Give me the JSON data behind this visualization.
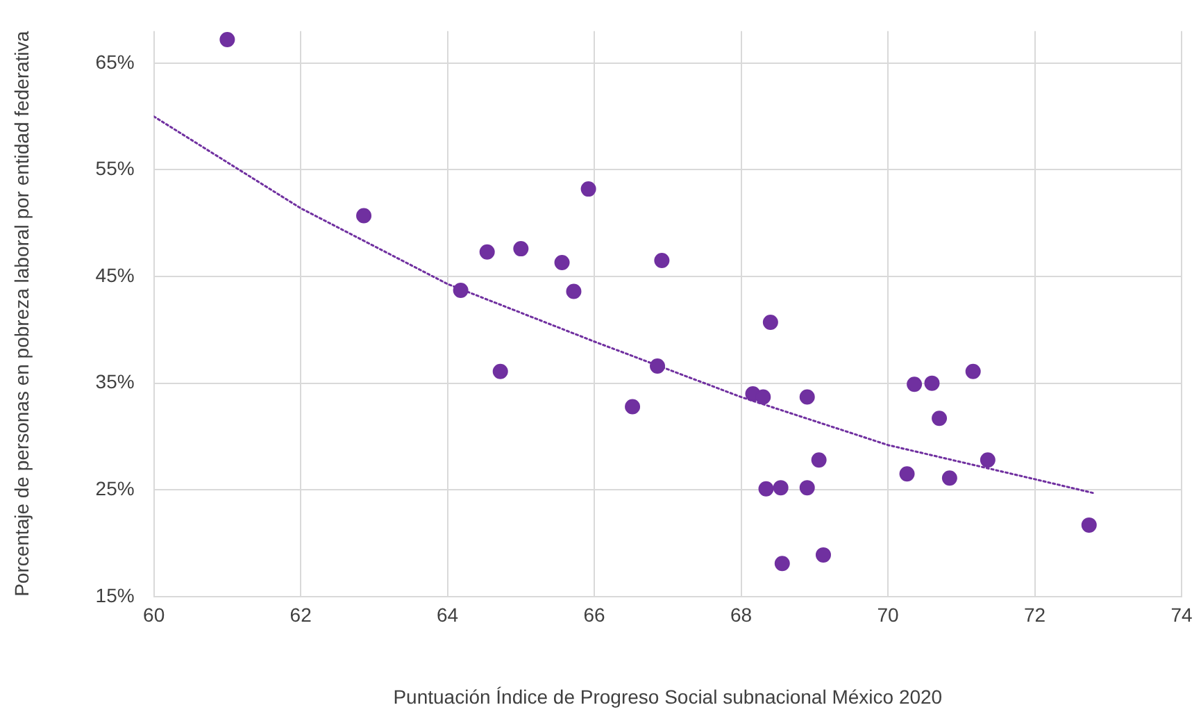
{
  "chart_data": {
    "type": "scatter",
    "xlabel": "Puntuación Índice de Progreso Social subnacional México 2020",
    "ylabel": "Porcentaje de personas en pobreza laboral por entidad federativa",
    "xlim": [
      60,
      74
    ],
    "xticks": [
      60,
      62,
      64,
      66,
      68,
      70,
      72,
      74
    ],
    "ylim": [
      15,
      68
    ],
    "yticks": [
      {
        "value": 15,
        "label": "15%"
      },
      {
        "value": 25,
        "label": "25%"
      },
      {
        "value": 35,
        "label": "35%"
      },
      {
        "value": 45,
        "label": "45%"
      },
      {
        "value": 55,
        "label": "55%"
      },
      {
        "value": 65,
        "label": "65%"
      }
    ],
    "grid": true,
    "marker": "circle",
    "series": [
      {
        "color": "#7030a0",
        "x": [
          61.0,
          62.86,
          64.18,
          64.54,
          65.0,
          65.56,
          65.72,
          65.92,
          64.72,
          66.52,
          66.92,
          66.86,
          68.16,
          68.3,
          68.4,
          68.34,
          68.54,
          68.56,
          68.9,
          68.9,
          69.06,
          69.12,
          70.26,
          70.36,
          70.6,
          70.7,
          70.84,
          71.16,
          71.36,
          72.74
        ],
        "values": [
          67.2,
          50.7,
          43.7,
          47.3,
          47.6,
          46.3,
          43.6,
          53.2,
          36.1,
          32.8,
          46.5,
          36.6,
          34.0,
          33.7,
          40.7,
          25.1,
          25.2,
          18.1,
          33.7,
          25.2,
          27.8,
          18.9,
          26.5,
          34.9,
          35.0,
          31.7,
          26.1,
          36.1,
          27.8,
          21.7
        ]
      },
      {
        "type": "line",
        "color": "#7030a0",
        "line_style": "dotted",
        "marker": "none",
        "x": [
          60,
          62,
          64,
          66,
          68,
          70,
          72,
          72.8
        ],
        "values": [
          60.0,
          51.4,
          44.3,
          38.9,
          33.7,
          29.2,
          26.0,
          24.7
        ]
      }
    ]
  }
}
